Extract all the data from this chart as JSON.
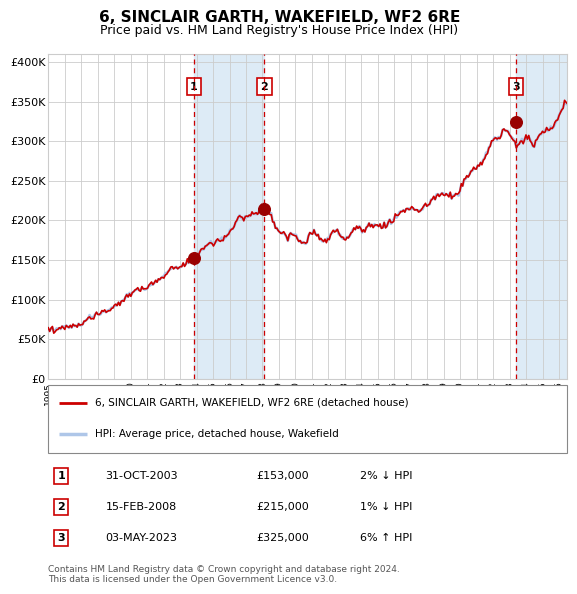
{
  "title": "6, SINCLAIR GARTH, WAKEFIELD, WF2 6RE",
  "subtitle": "Price paid vs. HM Land Registry's House Price Index (HPI)",
  "hpi_color": "#aec6e8",
  "price_color": "#cc0000",
  "bg_color": "#ffffff",
  "grid_color": "#cccccc",
  "ylim": [
    0,
    410000
  ],
  "yticks": [
    0,
    50000,
    100000,
    150000,
    200000,
    250000,
    300000,
    350000,
    400000
  ],
  "ytick_labels": [
    "£0",
    "£50K",
    "£100K",
    "£150K",
    "£200K",
    "£250K",
    "£300K",
    "£350K",
    "£400K"
  ],
  "sales": [
    {
      "num": 1,
      "date_label": "31-OCT-2003",
      "price": 153000,
      "pct": "2%",
      "dir": "↓",
      "year_x": 2003.83
    },
    {
      "num": 2,
      "date_label": "15-FEB-2008",
      "price": 215000,
      "pct": "1%",
      "dir": "↓",
      "year_x": 2008.12
    },
    {
      "num": 3,
      "date_label": "03-MAY-2023",
      "price": 325000,
      "pct": "6%",
      "dir": "↑",
      "year_x": 2023.37
    }
  ],
  "legend_entries": [
    {
      "label": "6, SINCLAIR GARTH, WAKEFIELD, WF2 6RE (detached house)",
      "color": "#cc0000"
    },
    {
      "label": "HPI: Average price, detached house, Wakefield",
      "color": "#aec6e8"
    }
  ],
  "footnote": "Contains HM Land Registry data © Crown copyright and database right 2024.\nThis data is licensed under the Open Government Licence v3.0.",
  "xmin": 1995.0,
  "xmax": 2026.5
}
